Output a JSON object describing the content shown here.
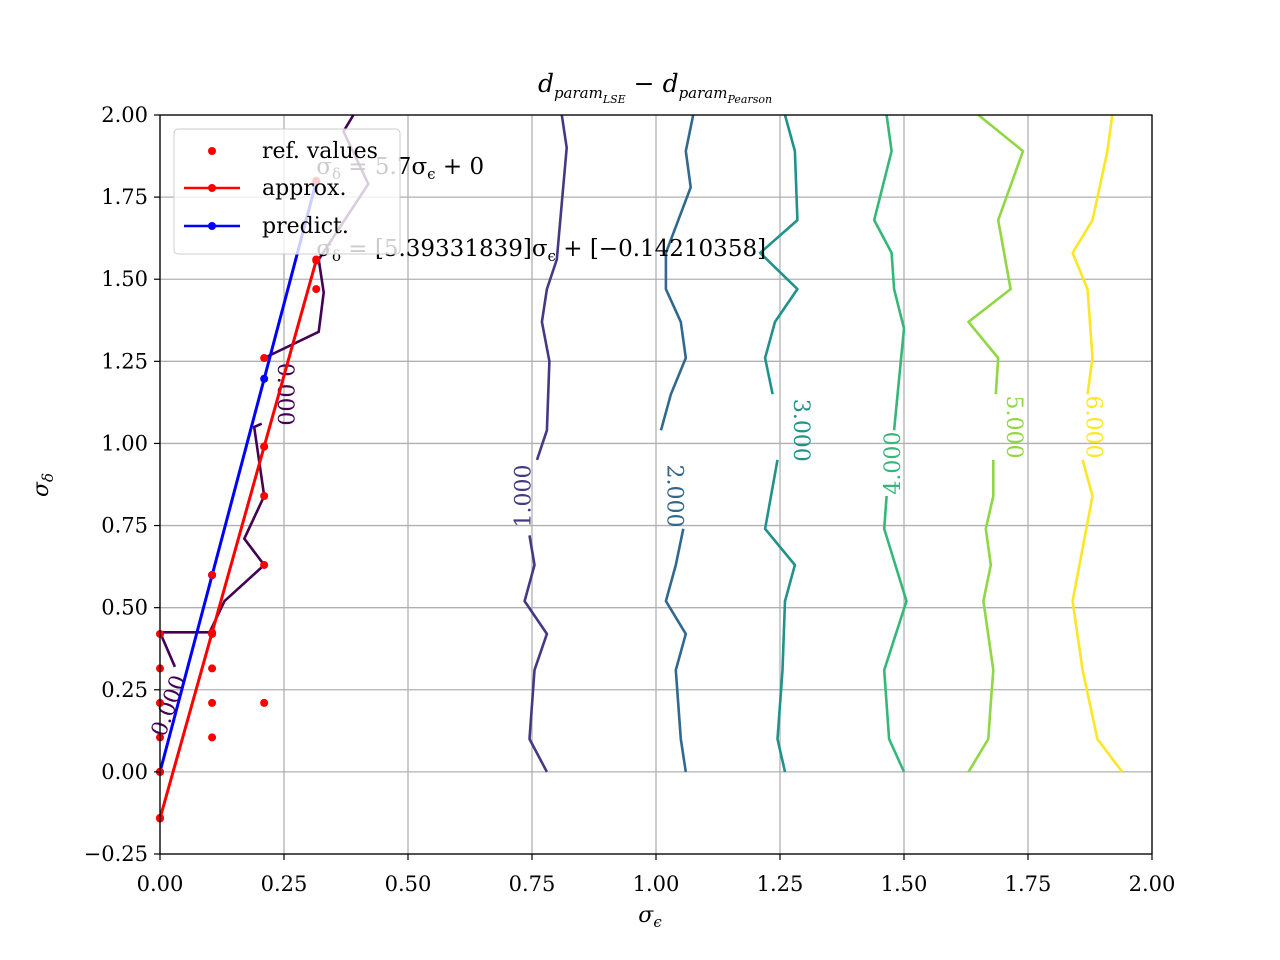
{
  "chart_data": {
    "type": "line",
    "title": "d_{param_{LSE}} − d_{param_{Pearson}}",
    "title_main": "d",
    "title_sub1": "param",
    "title_sub2a": "LSE",
    "title_minus": " − ",
    "title_sub2b": "Pearson",
    "xlabel": "σ",
    "xlabel_sub": "ϵ",
    "ylabel": "σ",
    "ylabel_sub": "δ",
    "xlim": [
      0.0,
      2.0
    ],
    "ylim": [
      -0.25,
      2.0
    ],
    "xticks": [
      0.0,
      0.25,
      0.5,
      0.75,
      1.0,
      1.25,
      1.5,
      1.75,
      2.0
    ],
    "xtick_labels": [
      "0.00",
      "0.25",
      "0.50",
      "0.75",
      "1.00",
      "1.25",
      "1.50",
      "1.75",
      "2.00"
    ],
    "yticks": [
      -0.25,
      0.0,
      0.25,
      0.5,
      0.75,
      1.0,
      1.25,
      1.5,
      1.75,
      2.0
    ],
    "ytick_labels": [
      "−0.25",
      "0.00",
      "0.25",
      "0.50",
      "0.75",
      "1.00",
      "1.25",
      "1.50",
      "1.75",
      "2.00"
    ],
    "grid": true,
    "legend_position": "top-left",
    "legend": [
      {
        "label": "ref. values",
        "kind": "marker",
        "color": "#ff0000"
      },
      {
        "label": "approx.",
        "kind": "line-marker",
        "color": "#ff0000"
      },
      {
        "label": "predict.",
        "kind": "line-marker",
        "color": "#0000ff"
      }
    ],
    "annotations": [
      {
        "text": "σ_δ = 5.7σ_ϵ + 0",
        "x": 0.315,
        "y": 1.82
      },
      {
        "text": "σ_δ = [5.39331839]σ_ϵ + [−0.14210358]",
        "x": 0.315,
        "y": 1.57
      }
    ],
    "annotation1_parts": [
      "σ",
      "δ",
      " = 5.7σ",
      "ϵ",
      " + 0"
    ],
    "annotation2_parts": [
      "σ",
      "δ",
      " = [5.39331839]σ",
      "ϵ",
      " + [−0.14210358]"
    ],
    "ref_values": {
      "x": [
        0.0,
        0.0,
        0.0,
        0.0,
        0.0,
        0.0,
        0.105,
        0.105,
        0.105,
        0.105,
        0.105,
        0.21,
        0.21,
        0.21,
        0.21,
        0.21,
        0.315,
        0.315,
        0.315
      ],
      "y": [
        -0.14,
        0.0,
        0.105,
        0.21,
        0.315,
        0.42,
        0.105,
        0.21,
        0.315,
        0.42,
        0.6,
        0.21,
        0.63,
        0.84,
        0.99,
        1.26,
        1.47,
        1.56,
        1.8
      ]
    },
    "approx": {
      "x": [
        0.0,
        0.105,
        0.21,
        0.315
      ],
      "y": [
        -0.142,
        0.424,
        0.991,
        1.557
      ]
    },
    "predict": {
      "x": [
        0.0,
        0.105,
        0.21,
        0.315
      ],
      "y": [
        0.0,
        0.599,
        1.197,
        1.796
      ]
    },
    "contours": [
      {
        "level": "0.000",
        "color": "#440154",
        "label_pos": [
          0.25,
          1.15
        ],
        "label_rot": 90,
        "lines": [
          [
            [
              0.0,
              0.425
            ],
            [
              0.1,
              0.425
            ],
            [
              0.13,
              0.52
            ],
            [
              0.21,
              0.63
            ],
            [
              0.17,
              0.71
            ],
            [
              0.21,
              0.84
            ],
            [
              0.19,
              1.05
            ],
            [
              0.205,
              1.06
            ]
          ],
          [
            [
              0.21,
              1.26
            ],
            [
              0.32,
              1.34
            ],
            [
              0.33,
              1.46
            ],
            [
              0.32,
              1.56
            ],
            [
              0.42,
              1.79
            ],
            [
              0.37,
              1.95
            ],
            [
              0.39,
              2.0
            ]
          ],
          [
            [
              0.0,
              0.425
            ],
            [
              0.03,
              0.32
            ]
          ]
        ]
      },
      {
        "level": "1.000",
        "color": "#443983",
        "label_pos": [
          0.735,
          0.84
        ],
        "label_rot": -90,
        "lines": [
          [
            [
              0.78,
              0.0
            ],
            [
              0.745,
              0.1
            ],
            [
              0.755,
              0.31
            ],
            [
              0.78,
              0.42
            ],
            [
              0.735,
              0.52
            ],
            [
              0.755,
              0.63
            ],
            [
              0.745,
              0.72
            ]
          ],
          [
            [
              0.76,
              0.95
            ],
            [
              0.78,
              1.04
            ],
            [
              0.785,
              1.25
            ],
            [
              0.77,
              1.37
            ],
            [
              0.78,
              1.47
            ],
            [
              0.8,
              1.56
            ],
            [
              0.82,
              1.9
            ],
            [
              0.81,
              2.0
            ]
          ]
        ]
      },
      {
        "level": "2.000",
        "color": "#31688e",
        "label_pos": [
          1.035,
          0.84
        ],
        "label_rot": 90,
        "lines": [
          [
            [
              1.06,
              0.0
            ],
            [
              1.05,
              0.1
            ],
            [
              1.04,
              0.31
            ],
            [
              1.06,
              0.42
            ],
            [
              1.02,
              0.52
            ],
            [
              1.04,
              0.63
            ],
            [
              1.055,
              0.74
            ]
          ],
          [
            [
              1.01,
              1.04
            ],
            [
              1.03,
              1.15
            ],
            [
              1.06,
              1.26
            ],
            [
              1.05,
              1.37
            ],
            [
              1.02,
              1.47
            ],
            [
              1.02,
              1.58
            ],
            [
              1.07,
              1.78
            ],
            [
              1.06,
              1.89
            ],
            [
              1.075,
              2.0
            ]
          ]
        ]
      },
      {
        "level": "3.000",
        "color": "#21918c",
        "label_pos": [
          1.29,
          1.04
        ],
        "label_rot": 90,
        "lines": [
          [
            [
              1.26,
              0.0
            ],
            [
              1.245,
              0.1
            ],
            [
              1.255,
              0.31
            ],
            [
              1.26,
              0.52
            ],
            [
              1.28,
              0.63
            ],
            [
              1.22,
              0.74
            ],
            [
              1.245,
              0.95
            ]
          ],
          [
            [
              1.235,
              1.15
            ],
            [
              1.22,
              1.26
            ],
            [
              1.24,
              1.37
            ],
            [
              1.285,
              1.47
            ],
            [
              1.21,
              1.58
            ],
            [
              1.285,
              1.68
            ],
            [
              1.28,
              1.89
            ],
            [
              1.26,
              2.0
            ]
          ]
        ]
      },
      {
        "level": "4.000",
        "color": "#35b779",
        "label_pos": [
          1.48,
          0.94
        ],
        "label_rot": -90,
        "lines": [
          [
            [
              1.5,
              0.0
            ],
            [
              1.47,
              0.1
            ],
            [
              1.46,
              0.31
            ],
            [
              1.505,
              0.52
            ],
            [
              1.46,
              0.74
            ],
            [
              1.465,
              0.84
            ]
          ],
          [
            [
              1.48,
              1.04
            ],
            [
              1.5,
              1.35
            ],
            [
              1.48,
              1.47
            ],
            [
              1.475,
              1.58
            ],
            [
              1.44,
              1.68
            ],
            [
              1.475,
              1.89
            ],
            [
              1.465,
              2.0
            ]
          ]
        ]
      },
      {
        "level": "5.000",
        "color": "#90d743",
        "label_pos": [
          1.72,
          1.05
        ],
        "label_rot": 90,
        "lines": [
          [
            [
              1.63,
              0.0
            ],
            [
              1.67,
              0.1
            ],
            [
              1.675,
              0.21
            ],
            [
              1.68,
              0.31
            ],
            [
              1.66,
              0.52
            ],
            [
              1.675,
              0.63
            ],
            [
              1.665,
              0.74
            ],
            [
              1.68,
              0.84
            ],
            [
              1.68,
              0.95
            ]
          ],
          [
            [
              1.685,
              1.15
            ],
            [
              1.69,
              1.26
            ],
            [
              1.63,
              1.37
            ],
            [
              1.715,
              1.47
            ],
            [
              1.69,
              1.68
            ],
            [
              1.74,
              1.89
            ],
            [
              1.65,
              2.0
            ]
          ]
        ]
      },
      {
        "level": "6.000",
        "color": "#fde725",
        "label_pos": [
          1.88,
          1.05
        ],
        "label_rot": 90,
        "lines": [
          [
            [
              1.94,
              0.0
            ],
            [
              1.89,
              0.1
            ],
            [
              1.86,
              0.31
            ],
            [
              1.84,
              0.52
            ],
            [
              1.88,
              0.84
            ],
            [
              1.86,
              0.95
            ]
          ],
          [
            [
              1.87,
              1.15
            ],
            [
              1.88,
              1.26
            ],
            [
              1.87,
              1.47
            ],
            [
              1.84,
              1.58
            ],
            [
              1.88,
              1.68
            ],
            [
              1.91,
              1.89
            ],
            [
              1.92,
              2.0
            ]
          ]
        ]
      }
    ],
    "contour_axis_label": {
      "text": "0.000",
      "x": 0.02,
      "y": 0.2
    }
  }
}
